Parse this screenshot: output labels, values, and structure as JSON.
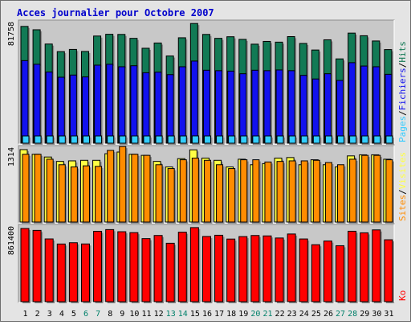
{
  "title": "Acces journalier pour Octobre 2007",
  "colors": {
    "pages": "#33ccff",
    "fichiers": "#1212ee",
    "hits": "#127a55",
    "sites": "#ff8c00",
    "visites": "#ffff44",
    "ko": "#ff0000",
    "title": "#0000cc",
    "day_normal": "#000000",
    "day_weekend": "#00806a",
    "panel_bg": "#c8c8c8"
  },
  "panels": [
    {
      "name": "hits-panel",
      "ymax_label": "81758",
      "legend": [
        {
          "text": "Pages",
          "color_key": "pages"
        },
        {
          "text": "/",
          "color_key": "day_normal"
        },
        {
          "text": "Fichiers",
          "color_key": "fichiers"
        },
        {
          "text": "/",
          "color_key": "day_normal"
        },
        {
          "text": "Hits",
          "color_key": "hits"
        }
      ]
    },
    {
      "name": "sites-panel",
      "ymax_label": "1314",
      "legend": [
        {
          "text": "Sites",
          "color_key": "sites"
        },
        {
          "text": "/",
          "color_key": "day_normal"
        },
        {
          "text": "Visites",
          "color_key": "visites"
        }
      ]
    },
    {
      "name": "ko-panel",
      "ymax_label": "861400",
      "legend": [
        {
          "text": "Ko",
          "color_key": "ko"
        }
      ]
    }
  ],
  "days": [
    "1",
    "2",
    "3",
    "4",
    "5",
    "6",
    "7",
    "8",
    "9",
    "10",
    "11",
    "12",
    "13",
    "14",
    "15",
    "16",
    "17",
    "18",
    "19",
    "20",
    "21",
    "22",
    "23",
    "24",
    "25",
    "26",
    "27",
    "28",
    "29",
    "30",
    "31"
  ],
  "weekend_days": [
    6,
    7,
    13,
    14,
    20,
    21,
    27,
    28
  ],
  "chart_data": [
    {
      "type": "bar",
      "title": "Acces journalier pour Octobre 2007",
      "categories": [
        "1",
        "2",
        "3",
        "4",
        "5",
        "6",
        "7",
        "8",
        "9",
        "10",
        "11",
        "12",
        "13",
        "14",
        "15",
        "16",
        "17",
        "18",
        "19",
        "20",
        "21",
        "22",
        "23",
        "24",
        "25",
        "26",
        "27",
        "28",
        "29",
        "30",
        "31"
      ],
      "ylim": [
        0,
        81758
      ],
      "series": [
        {
          "name": "Hits",
          "color_key": "hits",
          "values": [
            80200,
            77900,
            68100,
            62900,
            64400,
            63000,
            73600,
            74800,
            74700,
            72000,
            65200,
            68800,
            59900,
            72400,
            82200,
            74700,
            72000,
            73100,
            71300,
            68000,
            69900,
            69400,
            73200,
            68500,
            64000,
            71000,
            57900,
            75600,
            73800,
            70200,
            64300
          ]
        },
        {
          "name": "Fichiers",
          "color_key": "fichiers",
          "values": [
            56700,
            54200,
            48900,
            45300,
            46800,
            45500,
            53600,
            54200,
            52500,
            53200,
            48400,
            48800,
            47100,
            52500,
            56400,
            50100,
            49800,
            49500,
            47700,
            50100,
            49800,
            50300,
            49800,
            46600,
            44100,
            47700,
            43100,
            55300,
            53000,
            52500,
            47300
          ]
        },
        {
          "name": "Pages",
          "color_key": "pages",
          "values": [
            4700,
            4500,
            4500,
            4400,
            4500,
            4400,
            4500,
            4600,
            4700,
            4600,
            4400,
            4500,
            4500,
            4700,
            5000,
            4600,
            4600,
            4500,
            4600,
            4400,
            4500,
            4500,
            4500,
            4500,
            4400,
            4400,
            4400,
            4500,
            4400,
            4500,
            4400
          ]
        }
      ]
    },
    {
      "type": "bar",
      "categories": [
        "1",
        "2",
        "3",
        "4",
        "5",
        "6",
        "7",
        "8",
        "9",
        "10",
        "11",
        "12",
        "13",
        "14",
        "15",
        "16",
        "17",
        "18",
        "19",
        "20",
        "21",
        "22",
        "23",
        "24",
        "25",
        "26",
        "27",
        "28",
        "29",
        "30",
        "31"
      ],
      "ylim": [
        0,
        1314
      ],
      "series": [
        {
          "name": "Visites",
          "color_key": "visites",
          "values": [
            1314,
            1230,
            1180,
            1100,
            1110,
            1120,
            1120,
            1240,
            1270,
            1230,
            1210,
            1100,
            1000,
            1150,
            1310,
            1160,
            1120,
            1000,
            1140,
            1040,
            1060,
            1160,
            1170,
            1040,
            1130,
            1040,
            1000,
            1200,
            1220,
            1220,
            1140
          ]
        },
        {
          "name": "Sites",
          "color_key": "sites",
          "values": [
            1230,
            1230,
            1140,
            1040,
            1000,
            1020,
            1010,
            1300,
            1370,
            1230,
            1210,
            1040,
            970,
            1130,
            1160,
            1120,
            1040,
            970,
            1130,
            1130,
            1090,
            1100,
            1110,
            1110,
            1120,
            1080,
            1040,
            1140,
            1210,
            1210,
            1130
          ]
        }
      ]
    },
    {
      "type": "bar",
      "categories": [
        "1",
        "2",
        "3",
        "4",
        "5",
        "6",
        "7",
        "8",
        "9",
        "10",
        "11",
        "12",
        "13",
        "14",
        "15",
        "16",
        "17",
        "18",
        "19",
        "20",
        "21",
        "22",
        "23",
        "24",
        "25",
        "26",
        "27",
        "28",
        "29",
        "30",
        "31"
      ],
      "ylim": [
        0,
        861400
      ],
      "series": [
        {
          "name": "Ko",
          "color_key": "ko",
          "values": [
            861400,
            838900,
            738200,
            678600,
            693500,
            679300,
            827900,
            848300,
            823100,
            812600,
            741800,
            778800,
            687400,
            817600,
            871800,
            767300,
            781600,
            736600,
            765900,
            778600,
            773900,
            749200,
            796300,
            737700,
            670300,
            713700,
            658300,
            828800,
            810400,
            844600,
            728500
          ]
        }
      ]
    }
  ]
}
